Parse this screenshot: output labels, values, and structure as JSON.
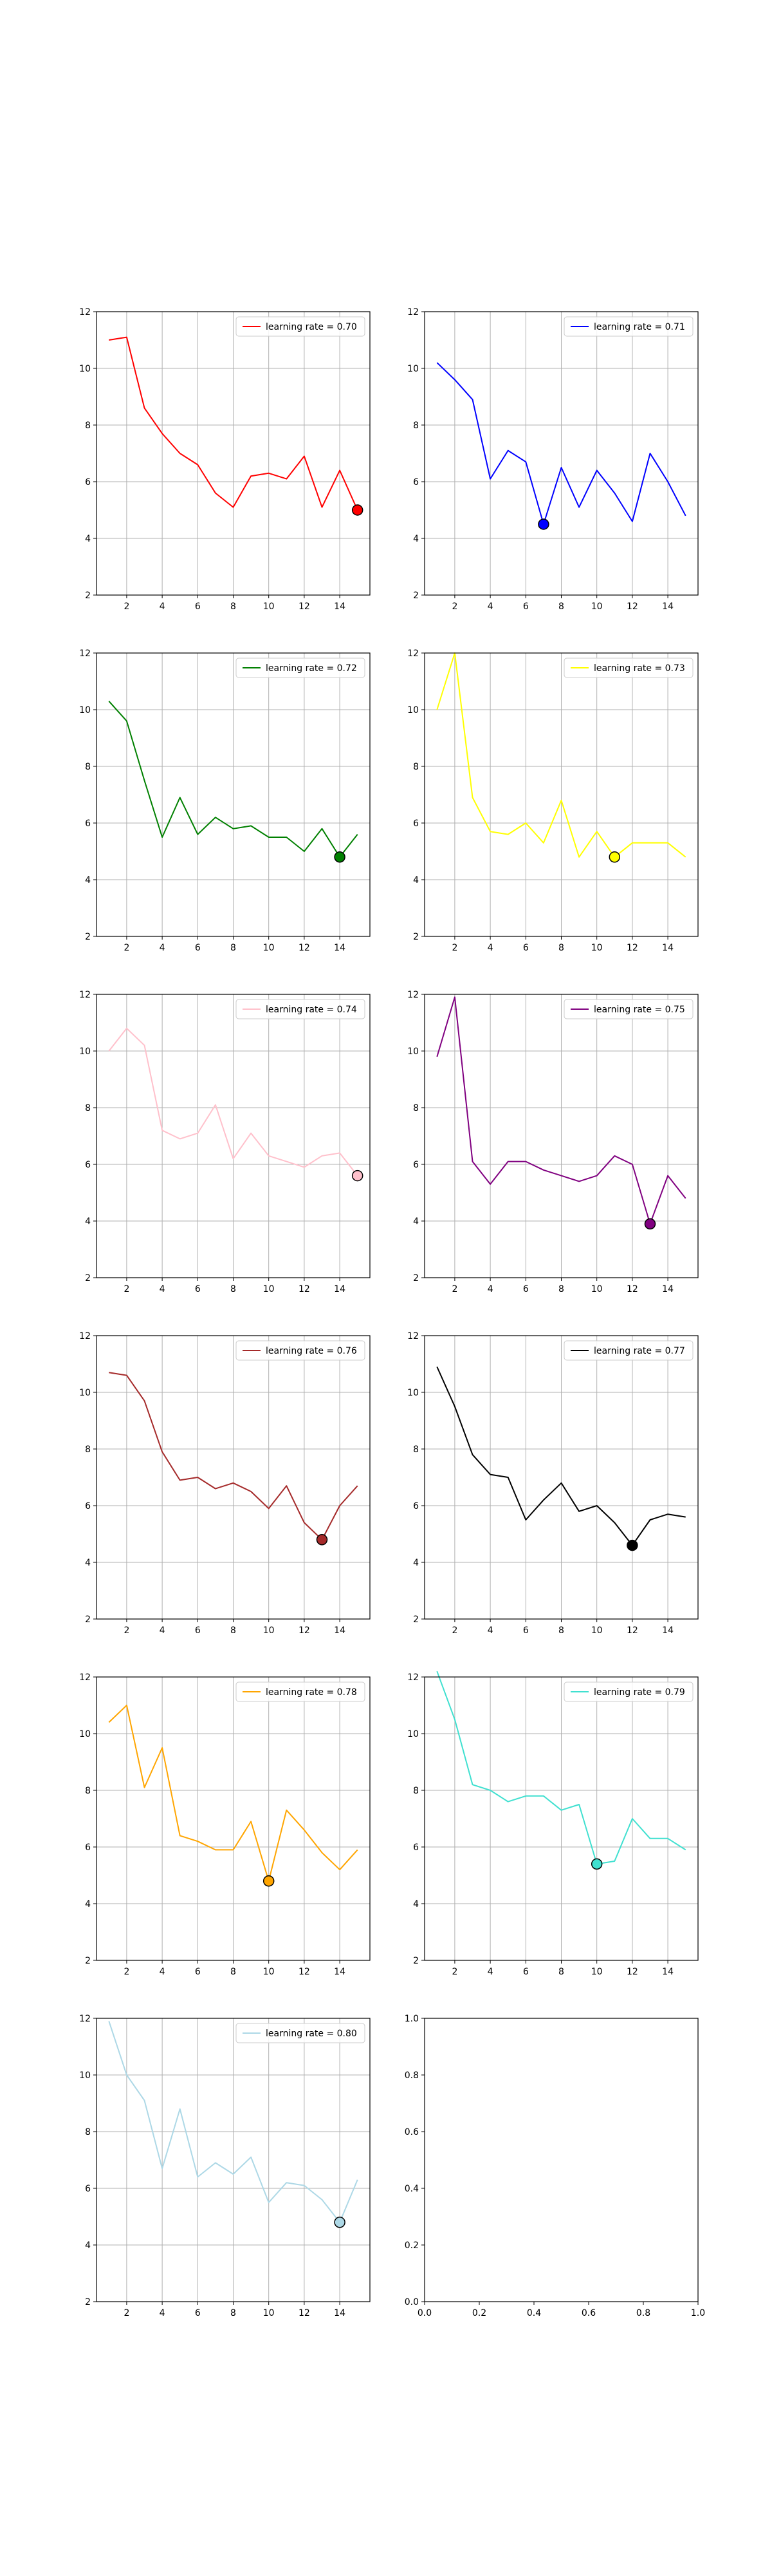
{
  "chart_data": [
    {
      "type": "line",
      "series": [
        {
          "name": "learning rate = 0.70",
          "color": "#ff0000",
          "x": [
            1,
            2,
            3,
            4,
            5,
            6,
            7,
            8,
            9,
            10,
            11,
            12,
            13,
            14,
            15
          ],
          "values": [
            11.0,
            11.1,
            8.6,
            7.7,
            7.0,
            6.6,
            5.6,
            5.1,
            6.2,
            6.3,
            6.1,
            6.9,
            5.1,
            6.4,
            5.0
          ]
        }
      ],
      "highlight": {
        "x": 15,
        "y": 5.0
      },
      "xticks": [
        "2",
        "4",
        "6",
        "8",
        "10",
        "12",
        "14"
      ],
      "yticks": [
        "2",
        "4",
        "6",
        "8",
        "10",
        "12"
      ],
      "xlim": [
        0.3,
        15.7
      ],
      "ylim": [
        2,
        12
      ],
      "grid": true,
      "legend_loc": "upper right"
    },
    {
      "type": "line",
      "series": [
        {
          "name": "learning rate = 0.71",
          "color": "#0000ff",
          "x": [
            1,
            2,
            3,
            4,
            5,
            6,
            7,
            8,
            9,
            10,
            11,
            12,
            13,
            14,
            15
          ],
          "values": [
            10.2,
            9.6,
            8.9,
            6.1,
            7.1,
            6.7,
            4.5,
            6.5,
            5.1,
            6.4,
            5.6,
            4.6,
            7.0,
            6.0,
            4.8
          ]
        }
      ],
      "highlight": {
        "x": 7,
        "y": 4.5
      },
      "xticks": [
        "2",
        "4",
        "6",
        "8",
        "10",
        "12",
        "14"
      ],
      "yticks": [
        "2",
        "4",
        "6",
        "8",
        "10",
        "12"
      ],
      "xlim": [
        0.3,
        15.7
      ],
      "ylim": [
        2,
        12
      ],
      "grid": true,
      "legend_loc": "upper right"
    },
    {
      "type": "line",
      "series": [
        {
          "name": "learning rate = 0.72",
          "color": "#008000",
          "x": [
            1,
            2,
            3,
            4,
            5,
            6,
            7,
            8,
            9,
            10,
            11,
            12,
            13,
            14,
            15
          ],
          "values": [
            10.3,
            9.6,
            7.5,
            5.5,
            6.9,
            5.6,
            6.2,
            5.8,
            5.9,
            5.5,
            5.5,
            5.0,
            5.8,
            4.8,
            5.6
          ]
        }
      ],
      "highlight": {
        "x": 14,
        "y": 4.8
      },
      "xticks": [
        "2",
        "4",
        "6",
        "8",
        "10",
        "12",
        "14"
      ],
      "yticks": [
        "2",
        "4",
        "6",
        "8",
        "10",
        "12"
      ],
      "xlim": [
        0.3,
        15.7
      ],
      "ylim": [
        2,
        12
      ],
      "grid": true,
      "legend_loc": "upper right"
    },
    {
      "type": "line",
      "series": [
        {
          "name": "learning rate = 0.73",
          "color": "#ffff00",
          "x": [
            1,
            2,
            3,
            4,
            5,
            6,
            7,
            8,
            9,
            10,
            11,
            12,
            13,
            14,
            15
          ],
          "values": [
            10.0,
            12.0,
            6.9,
            5.7,
            5.6,
            6.0,
            5.3,
            6.8,
            4.8,
            5.7,
            4.8,
            5.3,
            5.3,
            5.3,
            4.8
          ]
        }
      ],
      "highlight": {
        "x": 11,
        "y": 4.8
      },
      "xticks": [
        "2",
        "4",
        "6",
        "8",
        "10",
        "12",
        "14"
      ],
      "yticks": [
        "2",
        "4",
        "6",
        "8",
        "10",
        "12"
      ],
      "xlim": [
        0.3,
        15.7
      ],
      "ylim": [
        2,
        12
      ],
      "grid": true,
      "legend_loc": "upper right"
    },
    {
      "type": "line",
      "series": [
        {
          "name": "learning rate = 0.74",
          "color": "#ffc0cb",
          "x": [
            1,
            2,
            3,
            4,
            5,
            6,
            7,
            8,
            9,
            10,
            11,
            12,
            13,
            14,
            15
          ],
          "values": [
            10.0,
            10.8,
            10.2,
            7.2,
            6.9,
            7.1,
            8.1,
            6.2,
            7.1,
            6.3,
            6.1,
            5.9,
            6.3,
            6.4,
            5.6
          ]
        }
      ],
      "highlight": {
        "x": 15,
        "y": 5.6
      },
      "xticks": [
        "2",
        "4",
        "6",
        "8",
        "10",
        "12",
        "14"
      ],
      "yticks": [
        "2",
        "4",
        "6",
        "8",
        "10",
        "12"
      ],
      "xlim": [
        0.3,
        15.7
      ],
      "ylim": [
        2,
        12
      ],
      "grid": true,
      "legend_loc": "upper right"
    },
    {
      "type": "line",
      "series": [
        {
          "name": "learning rate = 0.75",
          "color": "#800080",
          "x": [
            1,
            2,
            3,
            4,
            5,
            6,
            7,
            8,
            9,
            10,
            11,
            12,
            13,
            14,
            15
          ],
          "values": [
            9.8,
            11.9,
            6.1,
            5.3,
            6.1,
            6.1,
            5.8,
            5.6,
            5.4,
            5.6,
            6.3,
            6.0,
            3.9,
            5.6,
            4.8
          ]
        }
      ],
      "highlight": {
        "x": 13,
        "y": 3.9
      },
      "xticks": [
        "2",
        "4",
        "6",
        "8",
        "10",
        "12",
        "14"
      ],
      "yticks": [
        "2",
        "4",
        "6",
        "8",
        "10",
        "12"
      ],
      "xlim": [
        0.3,
        15.7
      ],
      "ylim": [
        2,
        12
      ],
      "grid": true,
      "legend_loc": "upper right"
    },
    {
      "type": "line",
      "series": [
        {
          "name": "learning rate = 0.76",
          "color": "#a52a2a",
          "x": [
            1,
            2,
            3,
            4,
            5,
            6,
            7,
            8,
            9,
            10,
            11,
            12,
            13,
            14,
            15
          ],
          "values": [
            10.7,
            10.6,
            9.7,
            7.9,
            6.9,
            7.0,
            6.6,
            6.8,
            6.5,
            5.9,
            6.7,
            5.4,
            4.8,
            6.0,
            6.7
          ]
        }
      ],
      "highlight": {
        "x": 13,
        "y": 4.8
      },
      "xticks": [
        "2",
        "4",
        "6",
        "8",
        "10",
        "12",
        "14"
      ],
      "yticks": [
        "2",
        "4",
        "6",
        "8",
        "10",
        "12"
      ],
      "xlim": [
        0.3,
        15.7
      ],
      "ylim": [
        2,
        12
      ],
      "grid": true,
      "legend_loc": "upper right"
    },
    {
      "type": "line",
      "series": [
        {
          "name": "learning rate = 0.77",
          "color": "#000000",
          "x": [
            1,
            2,
            3,
            4,
            5,
            6,
            7,
            8,
            9,
            10,
            11,
            12,
            13,
            14,
            15
          ],
          "values": [
            10.9,
            9.5,
            7.8,
            7.1,
            7.0,
            5.5,
            6.2,
            6.8,
            5.8,
            6.0,
            5.4,
            4.6,
            5.5,
            5.7,
            5.6
          ]
        }
      ],
      "highlight": {
        "x": 12,
        "y": 4.6
      },
      "xticks": [
        "2",
        "4",
        "6",
        "8",
        "10",
        "12",
        "14"
      ],
      "yticks": [
        "2",
        "4",
        "6",
        "8",
        "10",
        "12"
      ],
      "xlim": [
        0.3,
        15.7
      ],
      "ylim": [
        2,
        12
      ],
      "grid": true,
      "legend_loc": "upper right"
    },
    {
      "type": "line",
      "series": [
        {
          "name": "learning rate = 0.78",
          "color": "#ffa500",
          "x": [
            1,
            2,
            3,
            4,
            5,
            6,
            7,
            8,
            9,
            10,
            11,
            12,
            13,
            14,
            15
          ],
          "values": [
            10.4,
            11.0,
            8.1,
            9.5,
            6.4,
            6.2,
            5.9,
            5.9,
            6.9,
            4.8,
            7.3,
            6.6,
            5.8,
            5.2,
            5.9
          ]
        }
      ],
      "highlight": {
        "x": 10,
        "y": 4.8
      },
      "xticks": [
        "2",
        "4",
        "6",
        "8",
        "10",
        "12",
        "14"
      ],
      "yticks": [
        "2",
        "4",
        "6",
        "8",
        "10",
        "12"
      ],
      "xlim": [
        0.3,
        15.7
      ],
      "ylim": [
        2,
        12
      ],
      "grid": true,
      "legend_loc": "upper right"
    },
    {
      "type": "line",
      "series": [
        {
          "name": "learning rate = 0.79",
          "color": "#40e0d0",
          "x": [
            1,
            2,
            3,
            4,
            5,
            6,
            7,
            8,
            9,
            10,
            11,
            12,
            13,
            14,
            15
          ],
          "values": [
            12.2,
            10.5,
            8.2,
            8.0,
            7.6,
            7.8,
            7.8,
            7.3,
            7.5,
            5.4,
            5.5,
            7.0,
            6.3,
            6.3,
            5.9
          ]
        }
      ],
      "highlight": {
        "x": 10,
        "y": 5.4
      },
      "xticks": [
        "2",
        "4",
        "6",
        "8",
        "10",
        "12",
        "14"
      ],
      "yticks": [
        "2",
        "4",
        "6",
        "8",
        "10",
        "12"
      ],
      "xlim": [
        0.3,
        15.7
      ],
      "ylim": [
        2,
        12
      ],
      "grid": true,
      "legend_loc": "upper right"
    },
    {
      "type": "line",
      "series": [
        {
          "name": "learning rate = 0.80",
          "color": "#add8e6",
          "x": [
            1,
            2,
            3,
            4,
            5,
            6,
            7,
            8,
            9,
            10,
            11,
            12,
            13,
            14,
            15
          ],
          "values": [
            11.9,
            10.0,
            9.1,
            6.7,
            8.8,
            6.4,
            6.9,
            6.5,
            7.1,
            5.5,
            6.2,
            6.1,
            5.6,
            4.8,
            6.3
          ]
        }
      ],
      "highlight": {
        "x": 14,
        "y": 4.8
      },
      "xticks": [
        "2",
        "4",
        "6",
        "8",
        "10",
        "12",
        "14"
      ],
      "yticks": [
        "2",
        "4",
        "6",
        "8",
        "10",
        "12"
      ],
      "xlim": [
        0.3,
        15.7
      ],
      "ylim": [
        2,
        12
      ],
      "grid": true,
      "legend_loc": "upper right"
    },
    {
      "type": "line",
      "series": [],
      "xticks": [
        "0.0",
        "0.2",
        "0.4",
        "0.6",
        "0.8",
        "1.0"
      ],
      "yticks": [
        "0.0",
        "0.2",
        "0.4",
        "0.6",
        "0.8",
        "1.0"
      ],
      "xlim": [
        0,
        1
      ],
      "ylim": [
        0,
        1
      ],
      "grid": false
    }
  ]
}
